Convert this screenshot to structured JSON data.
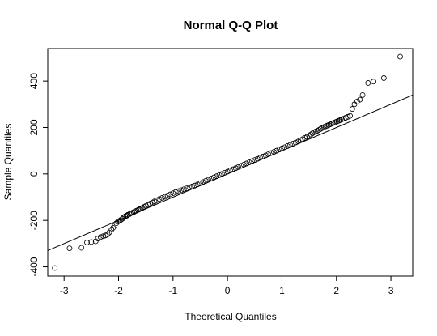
{
  "chart_data": {
    "type": "scatter",
    "title": "Normal Q-Q Plot",
    "xlabel": "Theoretical Quantiles",
    "ylabel": "Sample Quantiles",
    "xlim": [
      -3.3,
      3.4
    ],
    "ylim": [
      -440,
      540
    ],
    "xticks": [
      -3,
      -2,
      -1,
      0,
      1,
      2,
      3
    ],
    "xtick_labels": [
      "-3",
      "-2",
      "-1",
      "0",
      "1",
      "2",
      "3"
    ],
    "yticks": [
      -400,
      -200,
      0,
      200,
      400
    ],
    "ytick_labels": [
      "-400",
      "-200",
      "0",
      "200",
      "400"
    ],
    "grid": false,
    "reference_line": {
      "slope": 100,
      "intercept": 0
    },
    "points": {
      "x": [
        -3.17,
        -2.9,
        -2.68,
        -2.58,
        -2.5,
        -2.42,
        -2.38,
        -2.33,
        -2.28,
        -2.24,
        -2.2,
        -2.17,
        -2.13,
        -2.1,
        -2.07,
        -2.04,
        -2.01,
        -1.98,
        -1.96,
        -1.93,
        -1.91,
        -1.88,
        -1.85,
        -1.83,
        -1.8,
        -1.78,
        -1.75,
        -1.72,
        -1.7,
        -1.67,
        -1.64,
        -1.62,
        -1.59,
        -1.56,
        -1.53,
        -1.5,
        -1.46,
        -1.42,
        -1.38,
        -1.34,
        -1.3,
        -1.25,
        -1.2,
        -1.15,
        -1.1,
        -1.05,
        -1.0,
        -0.95,
        -0.9,
        -0.85,
        -0.8,
        -0.75,
        -0.7,
        -0.65,
        -0.6,
        -0.55,
        -0.5,
        -0.45,
        -0.4,
        -0.35,
        -0.3,
        -0.25,
        -0.2,
        -0.15,
        -0.1,
        -0.05,
        0.0,
        0.05,
        0.1,
        0.15,
        0.2,
        0.25,
        0.3,
        0.35,
        0.4,
        0.45,
        0.5,
        0.55,
        0.6,
        0.65,
        0.7,
        0.75,
        0.8,
        0.85,
        0.9,
        0.95,
        1.0,
        1.05,
        1.1,
        1.15,
        1.2,
        1.25,
        1.3,
        1.34,
        1.38,
        1.42,
        1.46,
        1.5,
        1.53,
        1.56,
        1.59,
        1.62,
        1.65,
        1.68,
        1.71,
        1.74,
        1.77,
        1.8,
        1.83,
        1.86,
        1.89,
        1.92,
        1.95,
        1.98,
        2.01,
        2.04,
        2.07,
        2.1,
        2.13,
        2.17,
        2.21,
        2.25,
        2.29,
        2.33,
        2.38,
        2.43,
        2.48,
        2.58,
        2.68,
        2.87,
        3.17
      ],
      "y": [
        -405,
        -320,
        -318,
        -295,
        -293,
        -290,
        -278,
        -272,
        -268,
        -265,
        -260,
        -252,
        -240,
        -232,
        -222,
        -212,
        -205,
        -202,
        -198,
        -193,
        -188,
        -183,
        -180,
        -176,
        -173,
        -170,
        -167,
        -164,
        -161,
        -158,
        -155,
        -152,
        -149,
        -146,
        -142,
        -138,
        -133,
        -128,
        -123,
        -118,
        -113,
        -108,
        -103,
        -98,
        -93,
        -88,
        -83,
        -78,
        -74,
        -70,
        -66,
        -62,
        -58,
        -54,
        -50,
        -45,
        -40,
        -35,
        -30,
        -25,
        -20,
        -15,
        -10,
        -5,
        0,
        5,
        10,
        15,
        20,
        25,
        30,
        35,
        40,
        45,
        50,
        55,
        60,
        65,
        70,
        75,
        80,
        85,
        90,
        95,
        100,
        105,
        110,
        115,
        120,
        125,
        130,
        135,
        140,
        145,
        150,
        155,
        160,
        165,
        170,
        175,
        180,
        183,
        186,
        190,
        194,
        198,
        202,
        205,
        208,
        211,
        214,
        217,
        220,
        223,
        226,
        229,
        232,
        235,
        238,
        242,
        246,
        250,
        280,
        300,
        312,
        320,
        340,
        392,
        398,
        413,
        505
      ]
    }
  }
}
